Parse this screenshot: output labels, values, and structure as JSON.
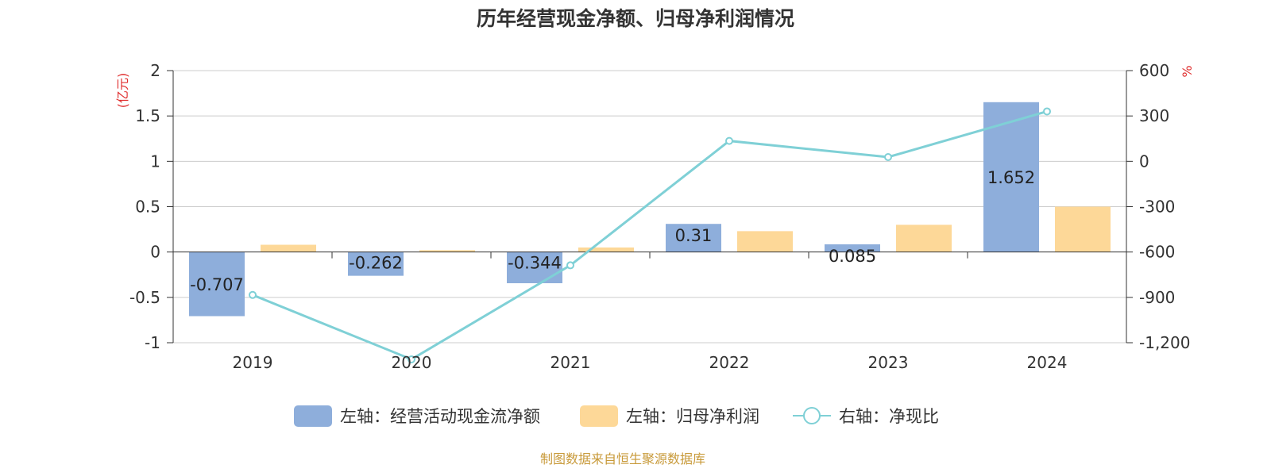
{
  "chart_data": {
    "type": "bar",
    "title": "历年经营现金净额、归母净利润情况",
    "categories": [
      "2019",
      "2020",
      "2021",
      "2022",
      "2023",
      "2024"
    ],
    "y_left": {
      "unit": "(亿元)",
      "range": [
        -1,
        2
      ],
      "ticks": [
        "-1",
        "-0.5",
        "0",
        "0.5",
        "1",
        "1.5",
        "2"
      ]
    },
    "y_right": {
      "unit": "%",
      "range": [
        -1200,
        600
      ],
      "ticks": [
        "-1,200",
        "-900",
        "-600",
        "-300",
        "0",
        "300",
        "600"
      ]
    },
    "grid": true,
    "legend_position": "bottom",
    "series": [
      {
        "name": "左轴：经营活动现金流净额",
        "kind": "bar",
        "axis": "left",
        "color": "#8eaedb",
        "values": [
          -0.707,
          -0.262,
          -0.344,
          0.31,
          0.085,
          1.652
        ],
        "labels": [
          "-0.707",
          "-0.262",
          "-0.344",
          "0.31",
          "0.085",
          "1.652"
        ]
      },
      {
        "name": "左轴：归母净利润",
        "kind": "bar",
        "axis": "left",
        "color": "#fdd898",
        "values": [
          0.08,
          0.02,
          0.05,
          0.23,
          0.3,
          0.5
        ]
      },
      {
        "name": "右轴：净现比",
        "kind": "line",
        "axis": "right",
        "color": "#7fd0d6",
        "values": [
          -884,
          -1310,
          -688,
          135,
          28,
          330
        ]
      }
    ],
    "source": "制图数据来自恒生聚源数据库"
  }
}
